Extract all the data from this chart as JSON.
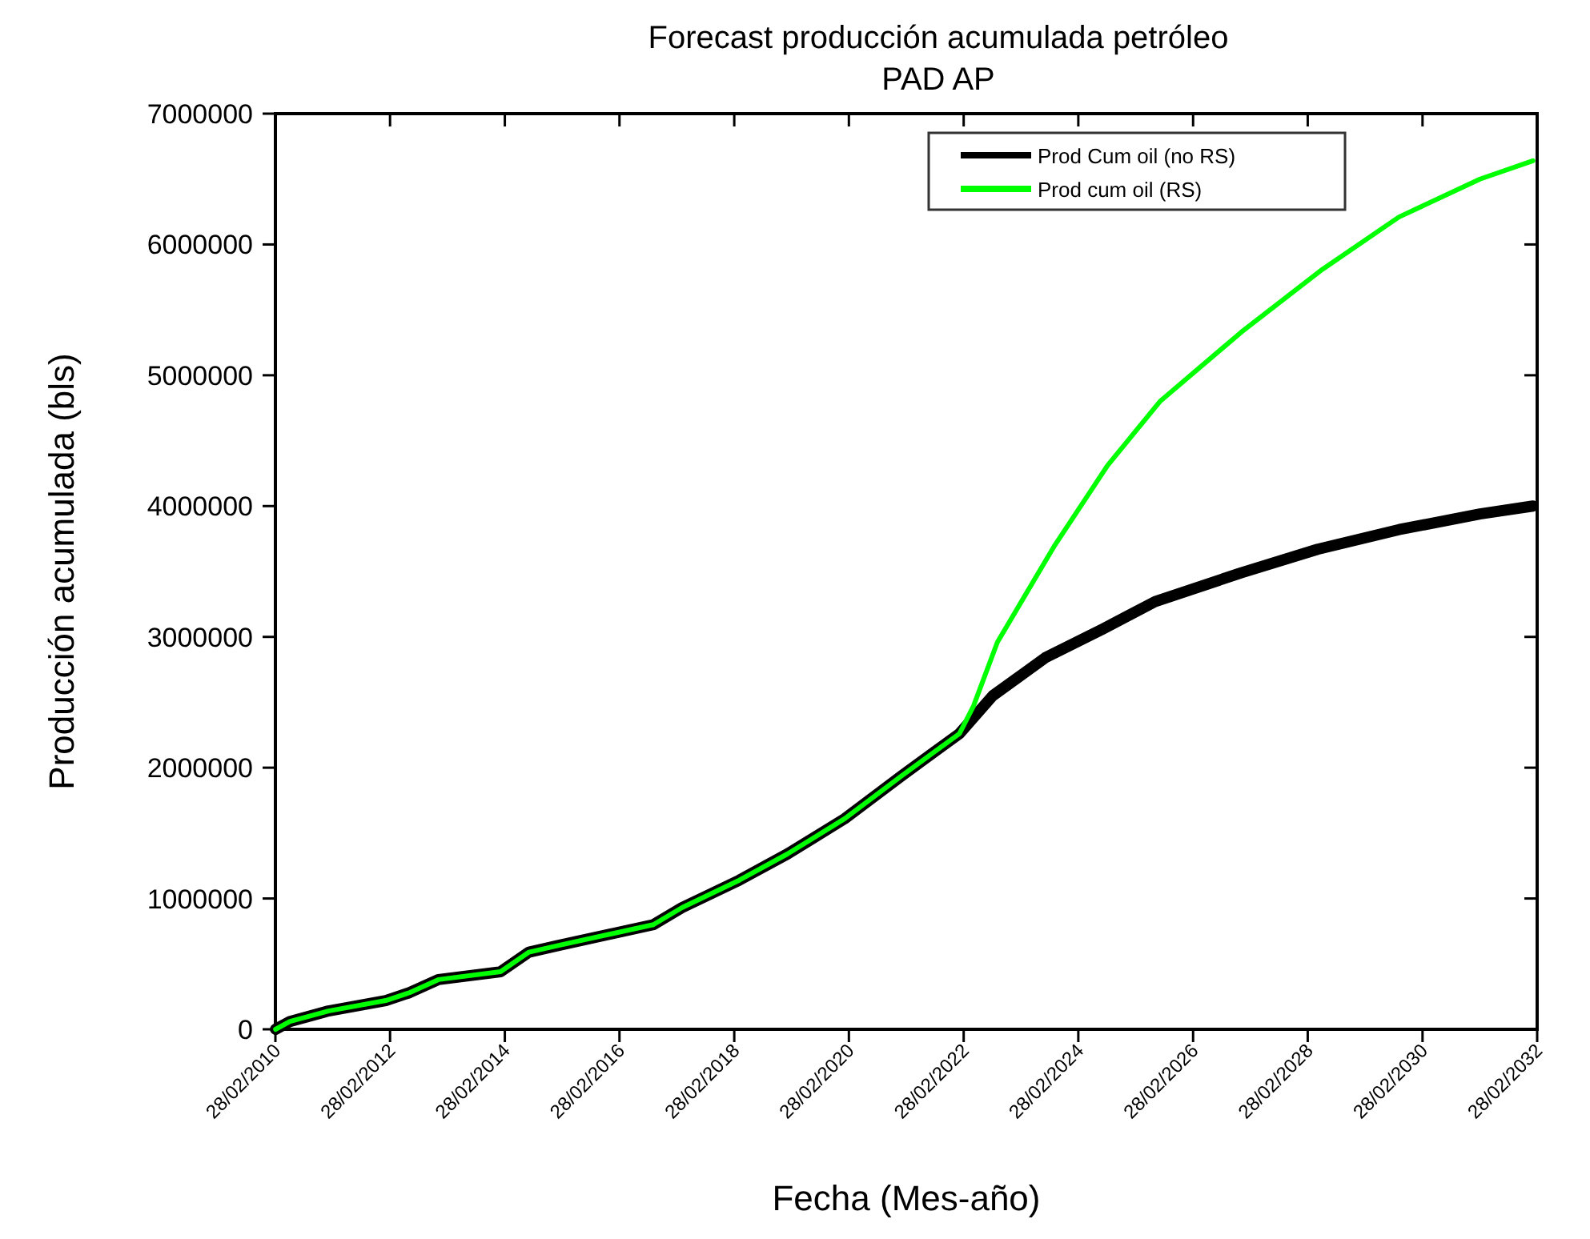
{
  "chart_data": {
    "type": "line",
    "title": "Forecast producción acumulada petróleo",
    "subtitle": "PAD AP",
    "xlabel": "Fecha (Mes-año)",
    "ylabel": "Producción acumulada (bls)",
    "xlim": [
      "2010-02-28",
      "2032-02-28"
    ],
    "xticks": [
      {
        "value": "2010-02-28",
        "label": "28/02/2010"
      },
      {
        "value": "2012-02-28",
        "label": "28/02/2012"
      },
      {
        "value": "2014-02-28",
        "label": "28/02/2014"
      },
      {
        "value": "2016-02-28",
        "label": "28/02/2016"
      },
      {
        "value": "2018-02-28",
        "label": "28/02/2018"
      },
      {
        "value": "2020-02-28",
        "label": "28/02/2020"
      },
      {
        "value": "2022-02-28",
        "label": "28/02/2022"
      },
      {
        "value": "2024-02-28",
        "label": "28/02/2024"
      },
      {
        "value": "2026-02-28",
        "label": "28/02/2026"
      },
      {
        "value": "2028-02-28",
        "label": "28/02/2028"
      },
      {
        "value": "2030-02-28",
        "label": "28/02/2030"
      },
      {
        "value": "2032-02-28",
        "label": "28/02/2032"
      }
    ],
    "ylim": [
      0,
      7000000
    ],
    "yticks": [
      0,
      1000000,
      2000000,
      3000000,
      4000000,
      5000000,
      6000000,
      7000000
    ],
    "grid": false,
    "legend": "top right",
    "marker": "none",
    "line_style": "solid",
    "series": [
      {
        "name": "Prod Cum oil (no RS)",
        "color": "#000000",
        "x": [
          "2010-03",
          "2010-06",
          "2011-02",
          "2012-02",
          "2012-07",
          "2013-01",
          "2014-02",
          "2014-08",
          "2015-02",
          "2016-10",
          "2017-04",
          "2018-04",
          "2019-02",
          "2020-02",
          "2021-02",
          "2021-08",
          "2022-02",
          "2022-09",
          "2023-08",
          "2024-08",
          "2025-07",
          "2027-01",
          "2028-05",
          "2029-10",
          "2031-03",
          "2032-02"
        ],
        "values": [
          0,
          60000,
          140000,
          220000,
          280000,
          380000,
          440000,
          590000,
          640000,
          800000,
          930000,
          1140000,
          1340000,
          1610000,
          1940000,
          2100000,
          2260000,
          2550000,
          2840000,
          3060000,
          3270000,
          3490000,
          3670000,
          3820000,
          3940000,
          4000000
        ]
      },
      {
        "name": "Prod cum oil (RS)",
        "color": "#00ff00",
        "x": [
          "2010-03",
          "2010-06",
          "2011-02",
          "2012-02",
          "2012-07",
          "2013-01",
          "2014-02",
          "2014-08",
          "2015-02",
          "2016-10",
          "2017-04",
          "2018-04",
          "2019-02",
          "2020-02",
          "2021-02",
          "2021-08",
          "2022-02",
          "2022-05",
          "2022-10",
          "2023-10",
          "2024-09",
          "2025-08",
          "2027-01",
          "2028-06",
          "2029-10",
          "2031-03",
          "2032-02"
        ],
        "values": [
          0,
          60000,
          140000,
          220000,
          280000,
          380000,
          440000,
          590000,
          640000,
          800000,
          930000,
          1140000,
          1340000,
          1610000,
          1940000,
          2100000,
          2260000,
          2470000,
          2960000,
          3700000,
          4310000,
          4800000,
          5330000,
          5810000,
          6210000,
          6500000,
          6640000
        ]
      }
    ]
  }
}
